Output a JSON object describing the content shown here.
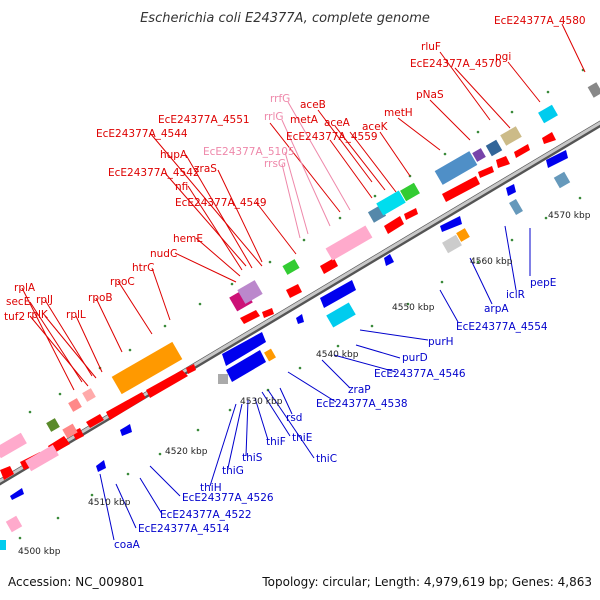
{
  "title": "Escherichia coli E24377A, complete genome",
  "accession": "Accession: NC_009801",
  "summary": "Topology: circular; Length: 4,979,619 bp; Genes: 4,863",
  "ticks": [
    "4500 kbp",
    "4510 kbp",
    "4520 kbp",
    "4530 kbp",
    "4540 kbp",
    "4550 kbp",
    "4560 kbp",
    "4570 kbp"
  ],
  "colors": {
    "label_top": "#dd0000",
    "label_top_pink": "#ee88aa",
    "label_bottom": "#0000cc",
    "backbone": "#888888",
    "gene_forward": "#ff0000",
    "gene_reverse": "#0000ee",
    "rRNA": "#ff99cc",
    "operon": "#ff9900",
    "misc_cyan": "#00ccee",
    "misc_green": "#33cc33",
    "misc_steelblue": "#4f8fc7",
    "misc_olive": "#5a8a2a"
  },
  "top_labels": [
    {
      "text": "EcE24377A_4580",
      "color": "red"
    },
    {
      "text": "rluF",
      "color": "red"
    },
    {
      "text": "EcE24377A_4570",
      "color": "red"
    },
    {
      "text": "pgi",
      "color": "red"
    },
    {
      "text": "pNaS",
      "color": "red"
    },
    {
      "text": "rrfG",
      "color": "pink"
    },
    {
      "text": "aceB",
      "color": "red"
    },
    {
      "text": "rrlG",
      "color": "pink"
    },
    {
      "text": "metA",
      "color": "red"
    },
    {
      "text": "aceA",
      "color": "red"
    },
    {
      "text": "metH",
      "color": "red"
    },
    {
      "text": "EcE24377A_4551",
      "color": "red"
    },
    {
      "text": "EcE24377A_4559",
      "color": "red"
    },
    {
      "text": "aceK",
      "color": "red"
    },
    {
      "text": "EcE24377A_4544",
      "color": "red"
    },
    {
      "text": "EcE24377A_5105",
      "color": "pink"
    },
    {
      "text": "hupA",
      "color": "red"
    },
    {
      "text": "rrsG",
      "color": "pink"
    },
    {
      "text": "zraS",
      "color": "red"
    },
    {
      "text": "EcE24377A_4542",
      "color": "red"
    },
    {
      "text": "nfi",
      "color": "red"
    },
    {
      "text": "EcE24377A_4549",
      "color": "red"
    },
    {
      "text": "hemE",
      "color": "red"
    },
    {
      "text": "nudC",
      "color": "red"
    },
    {
      "text": "htrC",
      "color": "red"
    },
    {
      "text": "rpoC",
      "color": "red"
    },
    {
      "text": "rpoB",
      "color": "red"
    },
    {
      "text": "rplA",
      "color": "red"
    },
    {
      "text": "secE",
      "color": "red"
    },
    {
      "text": "rplJ",
      "color": "red"
    },
    {
      "text": "tuf2",
      "color": "red"
    },
    {
      "text": "rplK",
      "color": "red"
    },
    {
      "text": "rplL",
      "color": "red"
    }
  ],
  "bottom_labels": [
    "pepE",
    "iclR",
    "arpA",
    "EcE24377A_4554",
    "purH",
    "purD",
    "EcE24377A_4546",
    "zraP",
    "EcE24377A_4538",
    "rsd",
    "thiC",
    "thiE",
    "thiF",
    "thiS",
    "thiG",
    "thiH",
    "EcE24377A_4526",
    "EcE24377A_4522",
    "EcE24377A_4514",
    "coaA"
  ]
}
